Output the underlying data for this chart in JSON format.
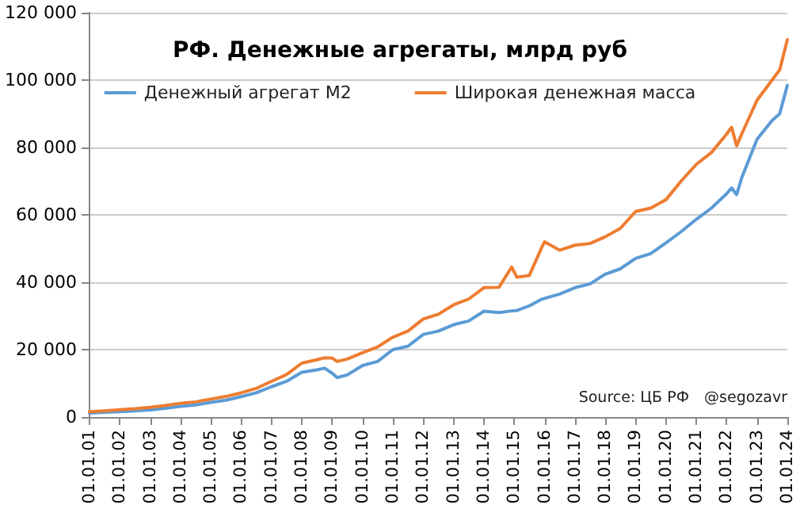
{
  "chart_data": {
    "type": "line",
    "title": "РФ. Денежные агрегаты, млрд руб",
    "x": [
      "2001-01",
      "2001-07",
      "2002-01",
      "2002-07",
      "2003-01",
      "2003-07",
      "2004-01",
      "2004-07",
      "2005-01",
      "2005-07",
      "2006-01",
      "2006-07",
      "2007-01",
      "2007-07",
      "2008-01",
      "2008-07",
      "2008-10",
      "2009-01",
      "2009-03",
      "2009-07",
      "2010-01",
      "2010-07",
      "2011-01",
      "2011-07",
      "2012-01",
      "2012-07",
      "2013-01",
      "2013-07",
      "2014-01",
      "2014-07",
      "2014-12",
      "2015-02",
      "2015-07",
      "2015-12",
      "2016-01",
      "2016-07",
      "2017-01",
      "2017-07",
      "2018-01",
      "2018-07",
      "2019-01",
      "2019-07",
      "2020-01",
      "2020-07",
      "2021-01",
      "2021-07",
      "2022-01",
      "2022-03",
      "2022-05",
      "2022-07",
      "2023-01",
      "2023-07",
      "2023-10",
      "2024-01"
    ],
    "series": [
      {
        "name": "Денежный агрегат М2",
        "color": "#5b9bd5",
        "values": [
          1150,
          1400,
          1610,
          1850,
          2130,
          2600,
          3200,
          3600,
          4350,
          5000,
          6050,
          7200,
          9000,
          10600,
          13300,
          14000,
          14500,
          13000,
          11700,
          12500,
          15300,
          16500,
          20000,
          21000,
          24500,
          25500,
          27400,
          28500,
          31400,
          31000,
          31500,
          31600,
          33000,
          35000,
          35200,
          36500,
          38400,
          39500,
          42400,
          44000,
          47100,
          48500,
          51700,
          55000,
          58700,
          62000,
          66300,
          68000,
          66000,
          71000,
          82400,
          88000,
          90000,
          98400
        ]
      },
      {
        "name": "Широкая денежная масса",
        "color": "#ed7d31",
        "values": [
          1560,
          1850,
          2150,
          2450,
          2870,
          3400,
          4090,
          4500,
          5330,
          6100,
          7190,
          8500,
          10600,
          12600,
          16000,
          17000,
          17600,
          17500,
          16500,
          17200,
          19100,
          20800,
          23700,
          25500,
          29100,
          30500,
          33300,
          35000,
          38400,
          38500,
          44500,
          41500,
          42000,
          50500,
          52000,
          49500,
          51000,
          51500,
          53500,
          56000,
          61000,
          62000,
          64500,
          70000,
          75000,
          78500,
          84000,
          86000,
          80500,
          84000,
          94000,
          100000,
          103000,
          112000
        ]
      }
    ],
    "xlim": [
      "2001-01",
      "2024-01"
    ],
    "xticks": [
      {
        "value": "2001-01-01",
        "label": "01.01.01"
      },
      {
        "value": "2002-01-01",
        "label": "01.01.02"
      },
      {
        "value": "2003-01-01",
        "label": "01.01.03"
      },
      {
        "value": "2004-01-01",
        "label": "01.01.04"
      },
      {
        "value": "2005-01-01",
        "label": "01.01.05"
      },
      {
        "value": "2006-01-01",
        "label": "01.01.06"
      },
      {
        "value": "2007-01-01",
        "label": "01.01.07"
      },
      {
        "value": "2008-01-01",
        "label": "01.01.08"
      },
      {
        "value": "2009-01-01",
        "label": "01.01.09"
      },
      {
        "value": "2010-01-01",
        "label": "01.01.10"
      },
      {
        "value": "2011-01-01",
        "label": "01.01.11"
      },
      {
        "value": "2012-01-01",
        "label": "01.01.12"
      },
      {
        "value": "2013-01-01",
        "label": "01.01.13"
      },
      {
        "value": "2014-01-01",
        "label": "01.01.14"
      },
      {
        "value": "2015-01-01",
        "label": "01.01.15"
      },
      {
        "value": "2016-01-01",
        "label": "01.01.16"
      },
      {
        "value": "2017-01-01",
        "label": "01.01.17"
      },
      {
        "value": "2018-01-01",
        "label": "01.01.18"
      },
      {
        "value": "2019-01-01",
        "label": "01.01.19"
      },
      {
        "value": "2020-01-01",
        "label": "01.01.20"
      },
      {
        "value": "2021-01-01",
        "label": "01.01.21"
      },
      {
        "value": "2022-01-01",
        "label": "01.01.22"
      },
      {
        "value": "2023-01-01",
        "label": "01.01.23"
      },
      {
        "value": "2024-01-01",
        "label": "01.01.24"
      }
    ],
    "ylim": [
      0,
      120000
    ],
    "yticks": [
      {
        "value": 0,
        "label": "0"
      },
      {
        "value": 20000,
        "label": "20 000"
      },
      {
        "value": 40000,
        "label": "40 000"
      },
      {
        "value": 60000,
        "label": "60 000"
      },
      {
        "value": 80000,
        "label": "80 000"
      },
      {
        "value": 100000,
        "label": "100 000"
      },
      {
        "value": 120000,
        "label": "120 000"
      }
    ],
    "grid": "y",
    "legend": "top",
    "marker": "none",
    "line_style": "solid",
    "annotations": [
      "Source: ЦБ РФ",
      "@segozavr"
    ]
  }
}
